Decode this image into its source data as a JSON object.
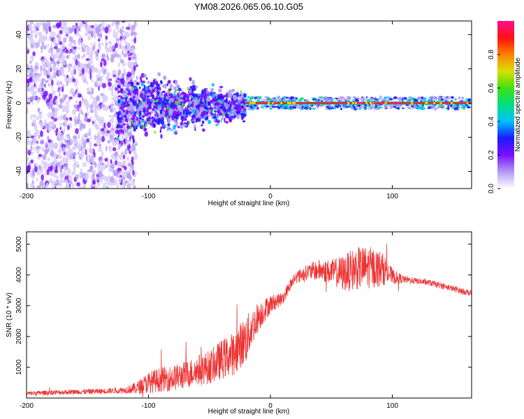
{
  "title": "YM08.2026.065.06.10.G05",
  "chart_data": [
    {
      "type": "heatmap",
      "title": "YM08.2026.065.06.10.G05",
      "xlabel": "Height of straight line (km)",
      "ylabel": "Frequency (Hz)",
      "xlim": [
        -200,
        165
      ],
      "ylim": [
        -50,
        48
      ],
      "x_ticks": [
        "-200",
        "-100",
        "0",
        "100"
      ],
      "y_ticks": [
        "40",
        "20",
        "0",
        "-20",
        "-40"
      ],
      "colorbar": {
        "label": "Normalized spectral amplitude",
        "range": [
          0,
          1
        ],
        "ticks": [
          "0.0",
          "0.2",
          "0.4",
          "0.6",
          "0.8"
        ],
        "colors": [
          "#ffffff",
          "#b19cf5",
          "#7a10ff",
          "#1a1aff",
          "#00bfff",
          "#00e080",
          "#40e010",
          "#d8e000",
          "#ff8000",
          "#ff1010",
          "#ff1090"
        ]
      },
      "features": {
        "signal_line_frequency_hz": 0,
        "noise_region_x_range_km": [
          -200,
          -110
        ],
        "turbulent_region_x_range_km": [
          -125,
          -20
        ],
        "clear_signal_x_range_km": [
          -20,
          165
        ]
      }
    },
    {
      "type": "line",
      "xlabel": "Height of straight line (km)",
      "ylabel": "SNR (10 * v/v)",
      "xlim": [
        -200,
        165
      ],
      "ylim": [
        0,
        5400
      ],
      "x_ticks": [
        "-200",
        "-100",
        "0",
        "100"
      ],
      "y_ticks": [
        "5000",
        "4000",
        "3000",
        "2000",
        "1000"
      ],
      "series": [
        {
          "name": "SNR",
          "color": "#ee3333",
          "x": [
            -200,
            -180,
            -160,
            -140,
            -120,
            -110,
            -100,
            -90,
            -80,
            -70,
            -60,
            -50,
            -40,
            -30,
            -25,
            -20,
            -15,
            -10,
            -5,
            0,
            5,
            10,
            15,
            20,
            30,
            40,
            50,
            60,
            70,
            80,
            90,
            95,
            100,
            110,
            120,
            130,
            140,
            150,
            160,
            165
          ],
          "values": [
            150,
            180,
            200,
            220,
            260,
            320,
            500,
            600,
            650,
            750,
            900,
            1000,
            1250,
            1450,
            1700,
            1900,
            2300,
            2650,
            2850,
            3050,
            3150,
            3200,
            3600,
            3900,
            4100,
            4150,
            4100,
            4050,
            4200,
            4250,
            4200,
            4150,
            3950,
            3850,
            3800,
            3750,
            3650,
            3550,
            3450,
            3400
          ],
          "noise_amplitude": [
            70,
            80,
            80,
            90,
            100,
            200,
            350,
            400,
            420,
            450,
            500,
            550,
            650,
            700,
            750,
            800,
            600,
            500,
            400,
            300,
            250,
            200,
            200,
            200,
            250,
            350,
            400,
            600,
            700,
            700,
            600,
            450,
            250,
            120,
            100,
            100,
            100,
            100,
            100,
            100
          ]
        }
      ]
    }
  ]
}
